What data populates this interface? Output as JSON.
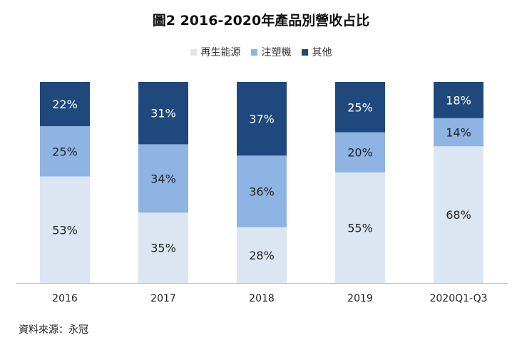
{
  "title": "圖2 2016-2020年產品別營收占比",
  "source": "資料來源：永冠",
  "chart_data": {
    "type": "bar",
    "stacked": true,
    "percent": true,
    "categories": [
      "2016",
      "2017",
      "2018",
      "2019",
      "2020Q1-Q3"
    ],
    "series": [
      {
        "name": "再生能源",
        "color": "#dce6f2",
        "values": [
          53,
          35,
          28,
          55,
          68
        ]
      },
      {
        "name": "注塑機",
        "color": "#8eb4e3",
        "values": [
          25,
          34,
          36,
          20,
          14
        ]
      },
      {
        "name": "其他",
        "color": "#1f497d",
        "values": [
          22,
          31,
          37,
          25,
          18
        ]
      }
    ],
    "value_suffix": "%",
    "ylim": [
      0,
      100
    ],
    "grid": false,
    "legend_position": "top-center"
  }
}
